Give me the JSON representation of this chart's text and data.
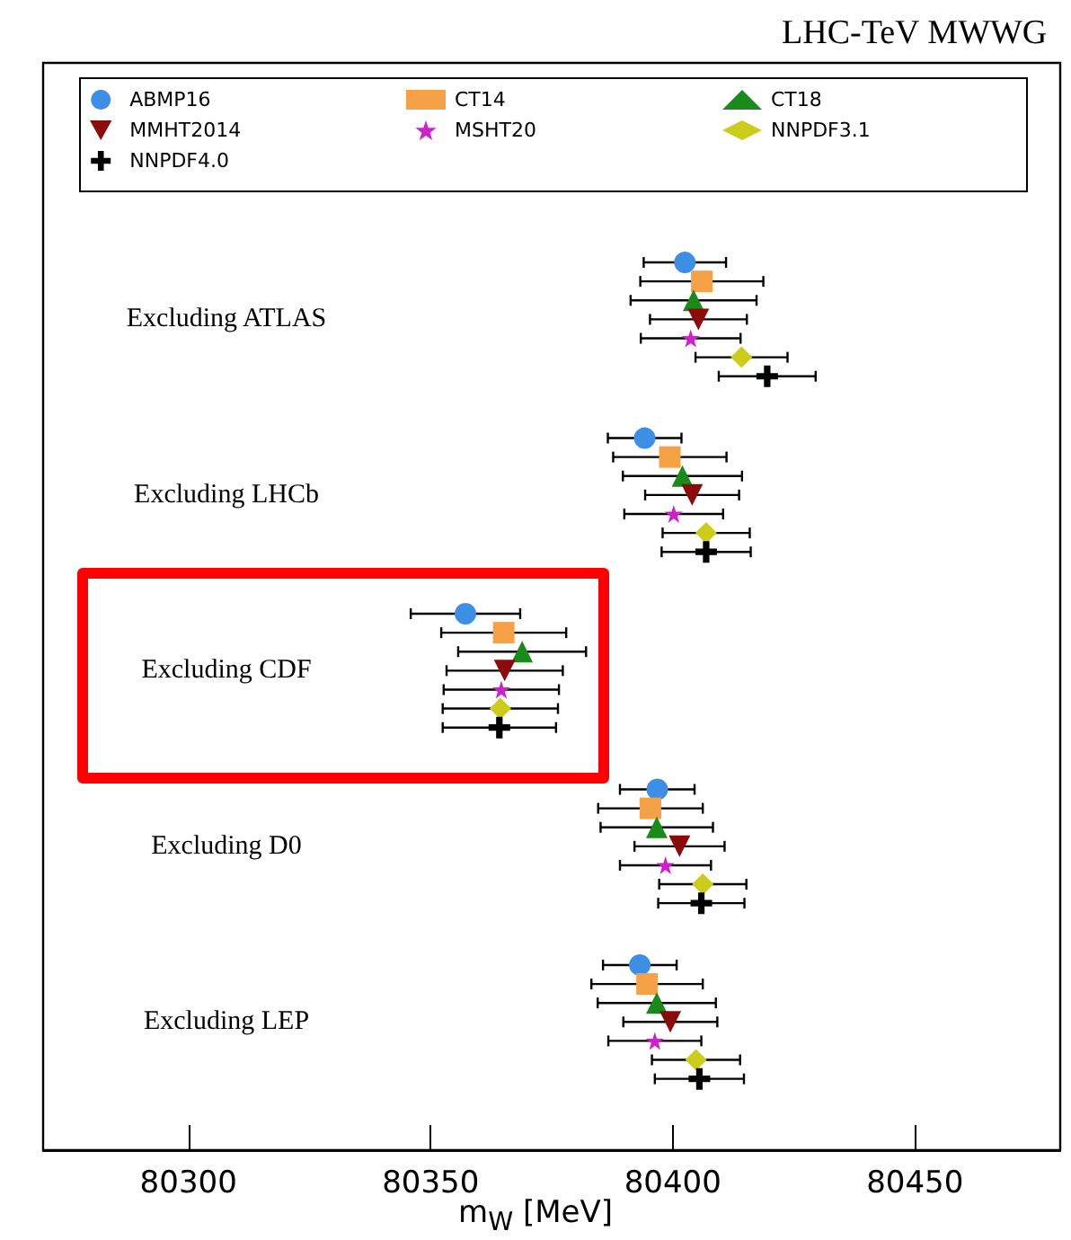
{
  "chart_data": {
    "type": "scatter",
    "orientation": "horizontal",
    "title": "LHC-TeV MWWG",
    "xlabel": "m$_{W}$ [MeV]",
    "categories": [
      "Excluding ATLAS",
      "Excluding LHCb",
      "Excluding CDF",
      "Excluding D0",
      "Excluding LEP"
    ],
    "xlim": [
      80270,
      80480
    ],
    "xticks": [
      80300,
      80350,
      80400,
      80450
    ],
    "grid": false,
    "legend": "top",
    "series": [
      {
        "name": "ABMP16",
        "color": "#3d8fe6",
        "marker": "circle",
        "values": [
          80402.5,
          80394.2,
          80357.2,
          80396.8,
          80393.2
        ],
        "errors": [
          8.5,
          7.6,
          11.3,
          7.7,
          7.6
        ]
      },
      {
        "name": "CT14",
        "color": "#f5a146",
        "marker": "square",
        "values": [
          80406,
          80399.4,
          80365.1,
          80395.4,
          80394.7
        ],
        "errors": [
          12.7,
          11.7,
          12.9,
          10.8,
          11.5
        ]
      },
      {
        "name": "CT18",
        "color": "#1a8a1a",
        "marker": "triangle",
        "values": [
          80404.3,
          80402,
          80368.9,
          80396.7,
          80396.7
        ],
        "errors": [
          13,
          12.3,
          13.2,
          11.6,
          12.2
        ]
      },
      {
        "name": "MMHT2014",
        "color": "#8b0a0a",
        "marker": "triangle-down",
        "values": [
          80405.3,
          80404,
          80365.3,
          80401.4,
          80399.5
        ],
        "errors": [
          10,
          9.7,
          12,
          9.3,
          9.7
        ]
      },
      {
        "name": "MSHT20",
        "color": "#cc22cc",
        "marker": "star",
        "values": [
          80403.7,
          80400.2,
          80364.6,
          80398.5,
          80396.3
        ],
        "errors": [
          10.3,
          10.2,
          11.9,
          9.4,
          9.6
        ]
      },
      {
        "name": "NNPDF3.1",
        "color": "#cccc1a",
        "marker": "diamond",
        "values": [
          80414.2,
          80406.9,
          80364.4,
          80406.2,
          80404.8
        ],
        "errors": [
          9.5,
          9,
          11.9,
          9,
          9.1
        ]
      },
      {
        "name": "NNPDF4.0",
        "color": "#000000",
        "marker": "cross",
        "values": [
          80419.5,
          80406.9,
          80364.2,
          80405.9,
          80405.5
        ],
        "errors": [
          10,
          9.2,
          11.7,
          8.9,
          9.2
        ]
      }
    ]
  }
}
